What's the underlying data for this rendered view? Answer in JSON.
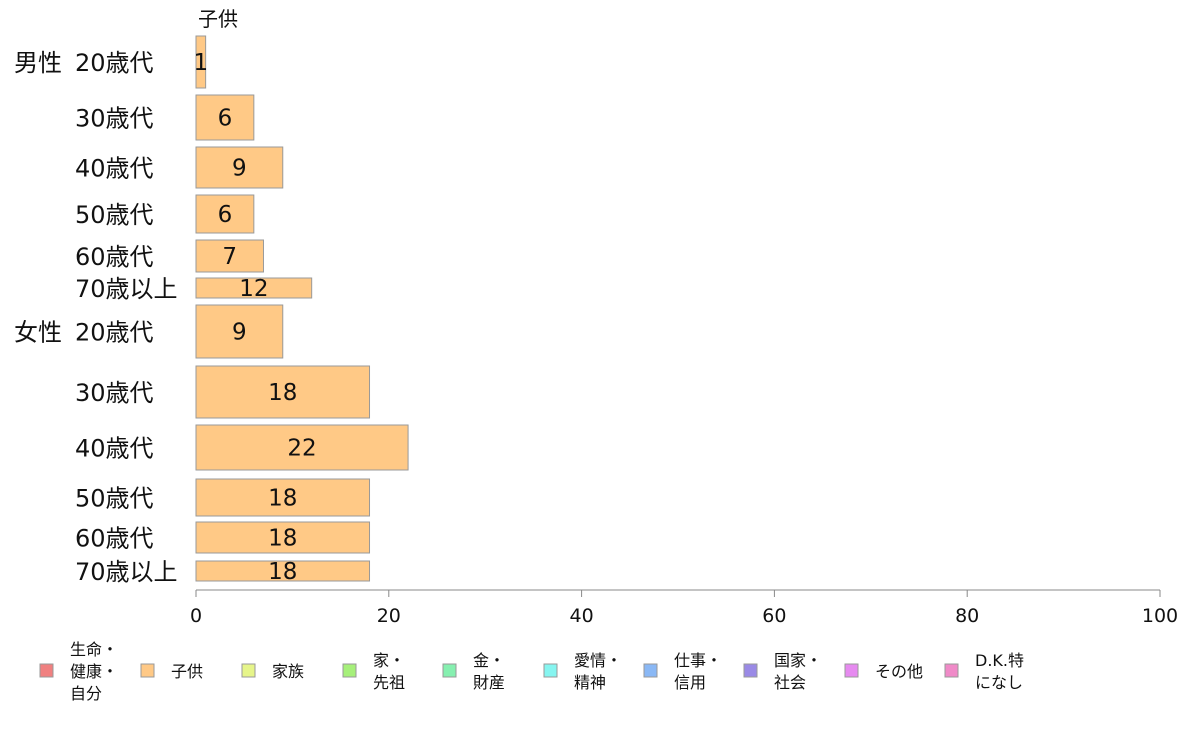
{
  "chart_data": {
    "type": "bar",
    "orientation": "horizontal",
    "series_title": "子供",
    "groups": [
      {
        "label": "男性",
        "rows": [
          {
            "label": "20歳代",
            "value": 1
          },
          {
            "label": "30歳代",
            "value": 6
          },
          {
            "label": "40歳代",
            "value": 9
          },
          {
            "label": "50歳代",
            "value": 6
          },
          {
            "label": "60歳代",
            "value": 7
          },
          {
            "label": "70歳以上",
            "value": 12
          }
        ]
      },
      {
        "label": "女性",
        "rows": [
          {
            "label": "20歳代",
            "value": 9
          },
          {
            "label": "30歳代",
            "value": 18
          },
          {
            "label": "40歳代",
            "value": 22
          },
          {
            "label": "50歳代",
            "value": 18
          },
          {
            "label": "60歳代",
            "value": 18
          },
          {
            "label": "70歳以上",
            "value": 18
          }
        ]
      }
    ],
    "xlim": [
      0,
      100
    ],
    "xticks": [
      "0",
      "20",
      "40",
      "60",
      "80",
      "100"
    ],
    "bar_color": "#ffc986",
    "bar_stroke": "#999999",
    "grid": false,
    "legend_position": "bottom",
    "legend": [
      {
        "name": "生命・健康・自分",
        "lines": [
          "生命・",
          "健康・",
          "自分"
        ],
        "color": "#f08080"
      },
      {
        "name": "子供",
        "lines": [
          "子供"
        ],
        "color": "#ffc986"
      },
      {
        "name": "家族",
        "lines": [
          "家族"
        ],
        "color": "#e6f58a"
      },
      {
        "name": "家・先祖",
        "lines": [
          "家・",
          "先祖"
        ],
        "color": "#a6f07a"
      },
      {
        "name": "金・財産",
        "lines": [
          "金・",
          "財産"
        ],
        "color": "#86f0b0"
      },
      {
        "name": "愛情・精神",
        "lines": [
          "愛情・",
          "精神"
        ],
        "color": "#86f5f0"
      },
      {
        "name": "仕事・信用",
        "lines": [
          "仕事・",
          "信用"
        ],
        "color": "#8ab8f5"
      },
      {
        "name": "国家・社会",
        "lines": [
          "国家・",
          "社会"
        ],
        "color": "#9a8ae6"
      },
      {
        "name": "その他",
        "lines": [
          "その他"
        ],
        "color": "#e68af0"
      },
      {
        "name": "D.K.特になし",
        "lines": [
          "D.K.特",
          "になし"
        ],
        "color": "#f08ac8"
      }
    ]
  }
}
